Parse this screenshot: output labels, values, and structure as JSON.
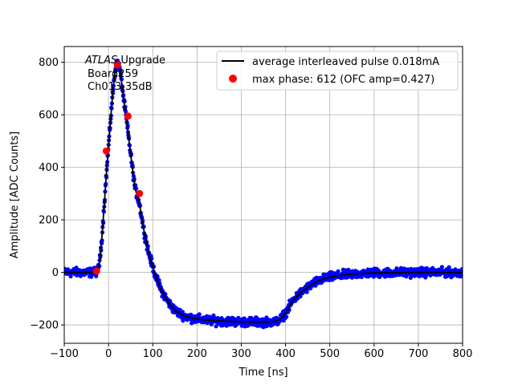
{
  "chart_data": {
    "type": "line",
    "title": "",
    "xlabel": "Time [ns]",
    "ylabel": "Amplitude [ADC Counts]",
    "xlim": [
      -100,
      800
    ],
    "ylim": [
      -270,
      860
    ],
    "xticks": [
      -100,
      0,
      100,
      200,
      300,
      400,
      500,
      600,
      700,
      800
    ],
    "yticks": [
      -200,
      0,
      200,
      400,
      600,
      800
    ],
    "xtick_labels": [
      "−100",
      "0",
      "100",
      "200",
      "300",
      "400",
      "500",
      "600",
      "700",
      "800"
    ],
    "ytick_labels": [
      "−200",
      "0",
      "200",
      "400",
      "600",
      "800"
    ],
    "grid": true,
    "legend_position": "top-right",
    "annotation": {
      "line1_italic": "ATLAS",
      "line1_rest": " Upgrade",
      "line2": "Board259",
      "line3": "Ch013-35dB"
    },
    "series": [
      {
        "name": "average interleaved pulse 0.018mA",
        "kind": "line",
        "color": "#000000",
        "x": [
          -100,
          -60,
          -40,
          -30,
          -25,
          -20,
          -15,
          -10,
          -5,
          0,
          5,
          10,
          15,
          20,
          25,
          30,
          35,
          40,
          45,
          50,
          60,
          70,
          80,
          90,
          100,
          110,
          120,
          130,
          140,
          150,
          170,
          190,
          210,
          230,
          250,
          280,
          300,
          330,
          360,
          380,
          390,
          400,
          410,
          420,
          440,
          460,
          480,
          500,
          530,
          560,
          600,
          650,
          700,
          750,
          800
        ],
        "y": [
          0,
          0,
          0,
          0,
          5,
          40,
          130,
          250,
          370,
          480,
          590,
          690,
          770,
          800,
          780,
          720,
          650,
          590,
          520,
          450,
          320,
          260,
          160,
          80,
          20,
          -30,
          -70,
          -100,
          -125,
          -145,
          -165,
          -175,
          -180,
          -183,
          -185,
          -187,
          -188,
          -189,
          -189,
          -186,
          -175,
          -155,
          -125,
          -100,
          -70,
          -45,
          -28,
          -18,
          -10,
          -5,
          -2,
          -1,
          0,
          0,
          0
        ]
      },
      {
        "name": "samples",
        "kind": "scatter",
        "color": "#0000ff",
        "noise": 14
      },
      {
        "name": "max phase: 612 (OFC amp=0.427)",
        "kind": "scatter",
        "color": "#ff0000",
        "x": [
          -27,
          -5,
          20,
          44,
          70
        ],
        "y": [
          5,
          462,
          790,
          595,
          300
        ]
      }
    ]
  }
}
